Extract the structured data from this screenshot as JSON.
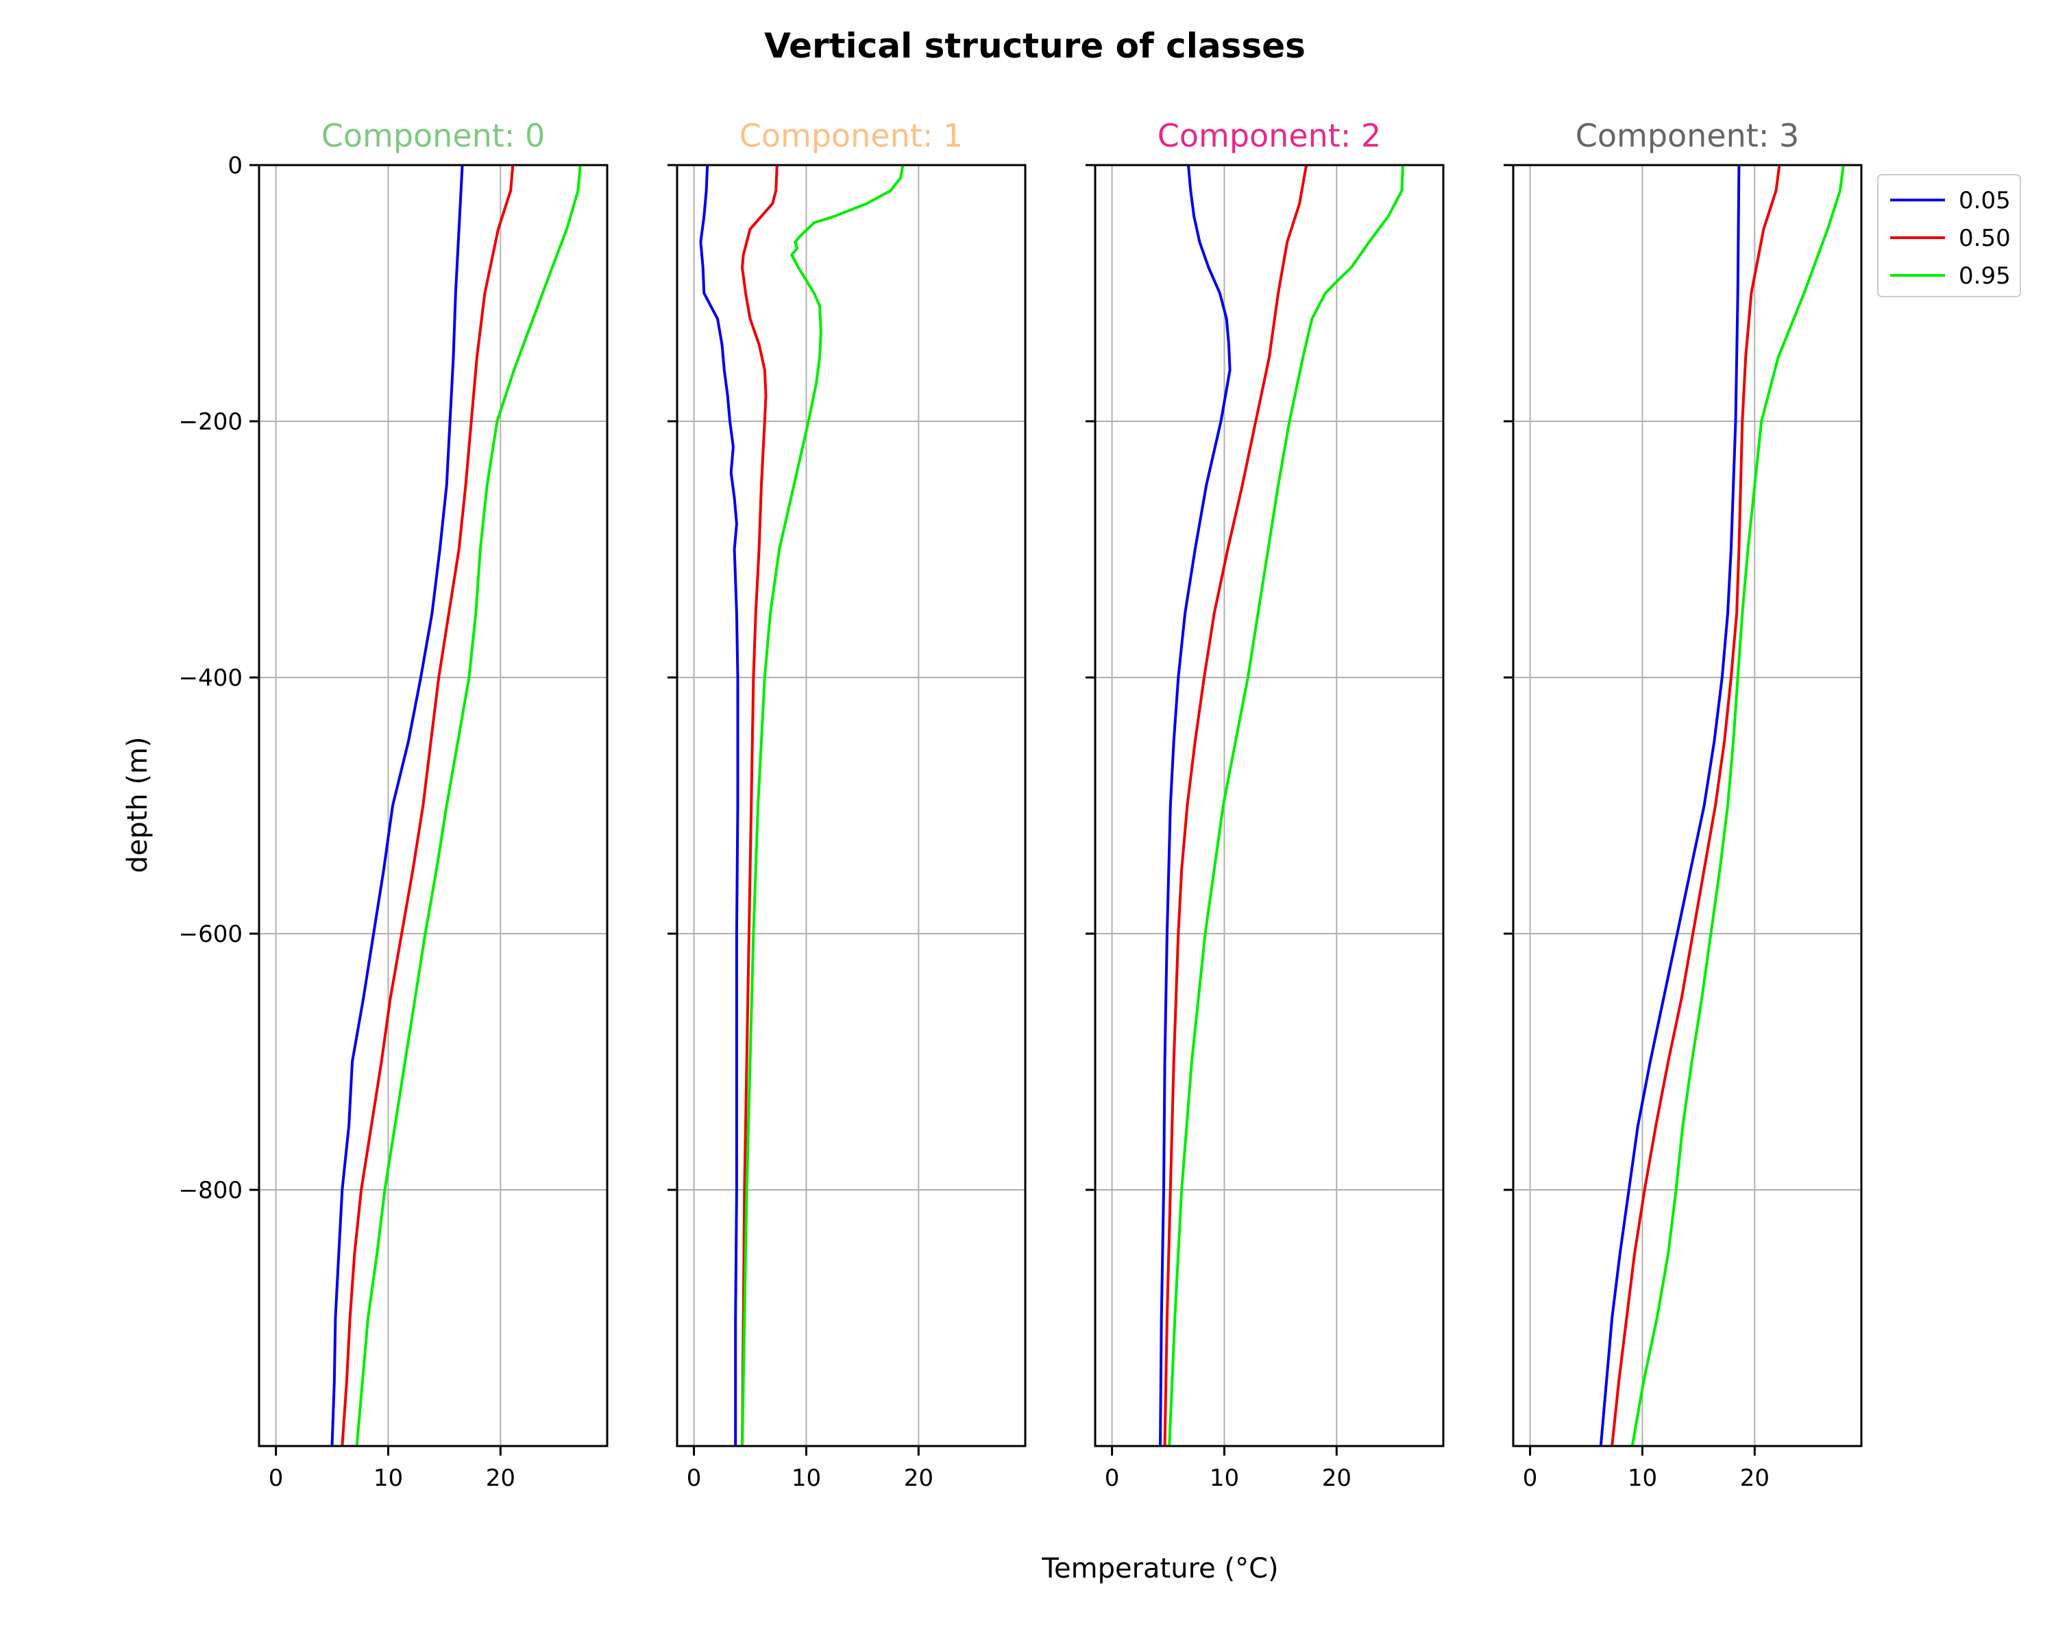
{
  "chart_data": {
    "type": "line",
    "title": "Vertical structure of classes",
    "xlabel": "Temperature (°C)",
    "ylabel": "depth (m)",
    "xlim": [
      -1.5,
      29.5
    ],
    "ylim": [
      -1000,
      0
    ],
    "xticks": [
      "0",
      "10",
      "20"
    ],
    "yticks": [
      "0",
      "−200",
      "−400",
      "−600",
      "−800"
    ],
    "grid": true,
    "legend": {
      "placement": "top-right, outside last panel",
      "entries": [
        "0.05",
        "0.50",
        "0.95"
      ]
    },
    "series_colors": {
      "0.05": "#0000ee",
      "0.50": "#ee0000",
      "0.95": "#00ee00"
    },
    "panels": [
      {
        "title": "Component: 0",
        "title_color": "#7fc97f",
        "series": [
          {
            "name": "0.05",
            "depth": [
              0,
              -50,
              -100,
              -150,
              -200,
              -250,
              -300,
              -350,
              -400,
              -450,
              -500,
              -550,
              -600,
              -650,
              -700,
              -750,
              -800,
              -850,
              -900,
              -950,
              -1000
            ],
            "temp": [
              16.6,
              16.3,
              16.0,
              15.8,
              15.5,
              15.2,
              14.6,
              13.9,
              12.9,
              11.8,
              10.4,
              9.6,
              8.7,
              7.8,
              6.8,
              6.5,
              5.9,
              5.6,
              5.3,
              5.2,
              5.0
            ]
          },
          {
            "name": "0.50",
            "depth": [
              0,
              -20,
              -50,
              -100,
              -150,
              -200,
              -250,
              -300,
              -350,
              -400,
              -450,
              -500,
              -550,
              -600,
              -650,
              -700,
              -750,
              -800,
              -850,
              -900,
              -950,
              -1000
            ],
            "temp": [
              21.1,
              20.9,
              19.8,
              18.6,
              17.9,
              17.4,
              16.9,
              16.3,
              15.4,
              14.5,
              13.8,
              13.1,
              12.2,
              11.2,
              10.2,
              9.4,
              8.5,
              7.6,
              7.0,
              6.6,
              6.3,
              5.9
            ]
          },
          {
            "name": "0.95",
            "depth": [
              0,
              -20,
              -50,
              -80,
              -120,
              -160,
              -200,
              -250,
              -300,
              -350,
              -400,
              -450,
              -500,
              -550,
              -600,
              -650,
              -700,
              -750,
              -800,
              -850,
              -900,
              -950,
              -1000
            ],
            "temp": [
              27.1,
              26.9,
              25.9,
              24.6,
              22.9,
              21.2,
              19.7,
              18.8,
              18.2,
              17.8,
              17.2,
              16.2,
              15.2,
              14.3,
              13.3,
              12.4,
              11.5,
              10.6,
              9.7,
              9.0,
              8.2,
              7.7,
              7.2
            ]
          }
        ]
      },
      {
        "title": "Component: 1",
        "title_color": "#fdc086",
        "series": [
          {
            "name": "0.05",
            "depth": [
              0,
              -20,
              -40,
              -60,
              -80,
              -100,
              -120,
              -140,
              -160,
              -180,
              -200,
              -220,
              -240,
              -260,
              -280,
              -300,
              -350,
              -400,
              -500,
              -600,
              -700,
              -800,
              -900,
              -1000
            ],
            "temp": [
              1.2,
              1.1,
              0.9,
              0.6,
              0.8,
              0.9,
              2.1,
              2.5,
              2.7,
              3.0,
              3.2,
              3.5,
              3.3,
              3.6,
              3.8,
              3.6,
              3.8,
              3.9,
              3.9,
              3.8,
              3.8,
              3.8,
              3.7,
              3.7
            ]
          },
          {
            "name": "0.50",
            "depth": [
              0,
              -20,
              -30,
              -40,
              -50,
              -60,
              -70,
              -80,
              -100,
              -120,
              -140,
              -160,
              -180,
              -200,
              -250,
              -300,
              -350,
              -400,
              -500,
              -600,
              -700,
              -800,
              -900,
              -1000
            ],
            "temp": [
              7.4,
              7.3,
              7.0,
              6.0,
              5.0,
              4.7,
              4.4,
              4.3,
              4.6,
              5.0,
              5.8,
              6.3,
              6.4,
              6.3,
              6.0,
              5.8,
              5.5,
              5.3,
              5.1,
              4.9,
              4.7,
              4.5,
              4.4,
              4.3
            ]
          },
          {
            "name": "0.95",
            "depth": [
              0,
              -10,
              -20,
              -30,
              -40,
              -45,
              -55,
              -60,
              -65,
              -70,
              -80,
              -90,
              -100,
              -110,
              -130,
              -150,
              -170,
              -200,
              -250,
              -300,
              -350,
              -400,
              -500,
              -600,
              -700,
              -800,
              -900,
              -1000
            ],
            "temp": [
              18.6,
              18.4,
              17.5,
              15.4,
              12.5,
              10.7,
              9.5,
              9.0,
              9.2,
              8.7,
              9.3,
              10.0,
              10.7,
              11.2,
              11.3,
              11.2,
              10.9,
              10.2,
              8.9,
              7.6,
              6.8,
              6.3,
              5.7,
              5.3,
              5.0,
              4.7,
              4.5,
              4.3
            ]
          }
        ]
      },
      {
        "title": "Component: 2",
        "title_color": "#e7298a",
        "series": [
          {
            "name": "0.05",
            "depth": [
              0,
              -20,
              -40,
              -60,
              -80,
              -100,
              -120,
              -140,
              -160,
              -180,
              -200,
              -250,
              -300,
              -350,
              -400,
              -450,
              -500,
              -600,
              -700,
              -800,
              -900,
              -1000
            ],
            "temp": [
              6.8,
              7.0,
              7.3,
              7.8,
              8.6,
              9.6,
              10.2,
              10.4,
              10.5,
              10.1,
              9.7,
              8.4,
              7.4,
              6.5,
              5.9,
              5.5,
              5.2,
              4.9,
              4.7,
              4.6,
              4.4,
              4.3
            ]
          },
          {
            "name": "0.50",
            "depth": [
              0,
              -30,
              -60,
              -100,
              -150,
              -200,
              -250,
              -300,
              -350,
              -400,
              -450,
              -500,
              -550,
              -600,
              -700,
              -800,
              -900,
              -1000
            ],
            "temp": [
              17.3,
              16.7,
              15.6,
              14.8,
              14.0,
              12.8,
              11.6,
              10.3,
              9.1,
              8.2,
              7.4,
              6.7,
              6.2,
              5.9,
              5.5,
              5.2,
              4.9,
              4.7
            ]
          },
          {
            "name": "0.95",
            "depth": [
              0,
              -20,
              -40,
              -60,
              -80,
              -90,
              -100,
              -120,
              -150,
              -200,
              -250,
              -300,
              -350,
              -400,
              -450,
              -500,
              -550,
              -600,
              -700,
              -800,
              -900,
              -1000
            ],
            "temp": [
              25.9,
              25.8,
              24.6,
              22.9,
              21.3,
              20.1,
              19.0,
              17.8,
              17.0,
              15.8,
              14.8,
              13.9,
              13.0,
              12.1,
              11.0,
              9.9,
              9.1,
              8.3,
              7.1,
              6.2,
              5.6,
              5.1
            ]
          }
        ]
      },
      {
        "title": "Component: 3",
        "title_color": "#666666",
        "series": [
          {
            "name": "0.05",
            "depth": [
              0,
              -100,
              -200,
              -300,
              -350,
              -400,
              -450,
              -500,
              -550,
              -600,
              -650,
              -700,
              -750,
              -800,
              -850,
              -900,
              -950,
              -1000
            ],
            "temp": [
              18.6,
              18.5,
              18.3,
              17.9,
              17.6,
              17.1,
              16.4,
              15.5,
              14.3,
              13.1,
              11.9,
              10.7,
              9.6,
              8.8,
              8.0,
              7.3,
              6.8,
              6.3
            ]
          },
          {
            "name": "0.50",
            "depth": [
              0,
              -20,
              -50,
              -100,
              -150,
              -200,
              -300,
              -350,
              -400,
              -450,
              -500,
              -550,
              -600,
              -650,
              -700,
              -750,
              -800,
              -850,
              -900,
              -950,
              -1000
            ],
            "temp": [
              22.2,
              21.9,
              20.8,
              19.7,
              19.2,
              18.9,
              18.6,
              18.4,
              17.9,
              17.3,
              16.5,
              15.5,
              14.5,
              13.5,
              12.3,
              11.2,
              10.2,
              9.3,
              8.6,
              7.9,
              7.3
            ]
          },
          {
            "name": "0.95",
            "depth": [
              0,
              -20,
              -50,
              -100,
              -150,
              -200,
              -300,
              -350,
              -400,
              -450,
              -500,
              -550,
              -600,
              -650,
              -700,
              -750,
              -800,
              -850,
              -900,
              -950,
              -1000
            ],
            "temp": [
              27.9,
              27.6,
              26.5,
              24.4,
              22.1,
              20.6,
              19.4,
              18.9,
              18.5,
              18.1,
              17.6,
              16.9,
              16.1,
              15.3,
              14.4,
              13.6,
              13.0,
              12.3,
              11.3,
              10.1,
              9.1
            ]
          }
        ]
      }
    ]
  }
}
